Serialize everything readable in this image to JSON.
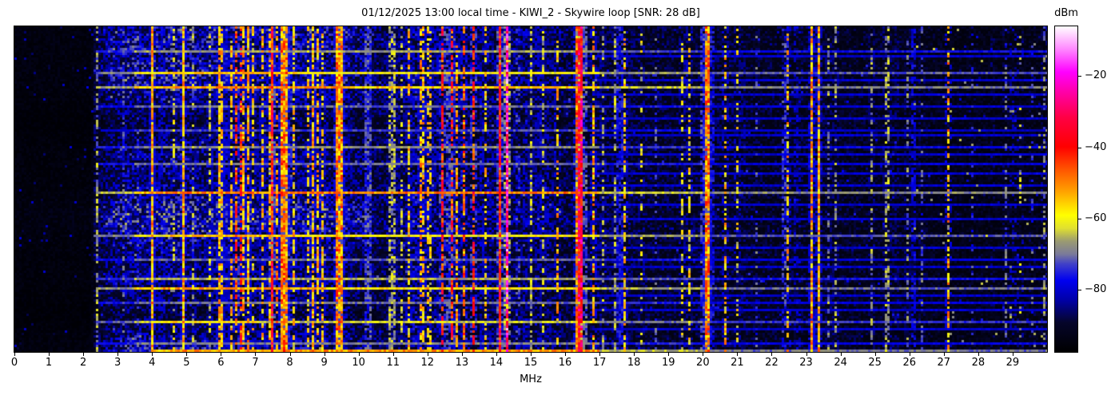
{
  "figure": {
    "background": "#ffffff",
    "text_color": "#000000"
  },
  "chart_data": {
    "type": "heatmap",
    "subtype": "radio-spectrogram-waterfall",
    "title": "01/12/2025 13:00 local time - KIWI_2 - Skywire loop [SNR: 28 dB]",
    "xlabel": "MHz",
    "x_range_mhz": [
      0,
      30
    ],
    "x_ticks": [
      0,
      1,
      2,
      3,
      4,
      5,
      6,
      7,
      8,
      9,
      10,
      11,
      12,
      13,
      14,
      15,
      16,
      17,
      18,
      19,
      20,
      21,
      22,
      23,
      24,
      25,
      26,
      27,
      28,
      29
    ],
    "y_axis": "time (no ticks shown)",
    "grid": false,
    "colorbar": {
      "label": "dBm",
      "ticks": [
        -20,
        -40,
        -60,
        -80
      ],
      "vmin": -97.5,
      "vmax": -6,
      "palette": [
        [
          0.0,
          "#000000"
        ],
        [
          0.09,
          "#05052a"
        ],
        [
          0.16,
          "#0000a8"
        ],
        [
          0.22,
          "#0000f0"
        ],
        [
          0.27,
          "#4040c8"
        ],
        [
          0.3,
          "#7a7a9a"
        ],
        [
          0.34,
          "#9a9a72"
        ],
        [
          0.38,
          "#e0e030"
        ],
        [
          0.42,
          "#ffff00"
        ],
        [
          0.5,
          "#ff9900"
        ],
        [
          0.56,
          "#ff5500"
        ],
        [
          0.63,
          "#ff0000"
        ],
        [
          0.72,
          "#ff0044"
        ],
        [
          0.8,
          "#ff00aa"
        ],
        [
          0.86,
          "#ff00ff"
        ],
        [
          0.93,
          "#ff88ff"
        ],
        [
          1.0,
          "#ffffff"
        ]
      ]
    },
    "noise_floor_profile": [
      [
        0,
        0.03
      ],
      [
        2.2,
        0.03
      ],
      [
        2.45,
        0.09
      ],
      [
        2.9,
        0.15
      ],
      [
        3.4,
        0.165
      ],
      [
        3.9,
        0.15
      ],
      [
        4.6,
        0.165
      ],
      [
        5.6,
        0.15
      ],
      [
        6.6,
        0.14
      ],
      [
        7.6,
        0.135
      ],
      [
        8.6,
        0.145
      ],
      [
        9.6,
        0.14
      ],
      [
        10.2,
        0.125
      ],
      [
        10.6,
        0.11
      ],
      [
        11.3,
        0.12
      ],
      [
        12.4,
        0.13
      ],
      [
        13.4,
        0.12
      ],
      [
        14.9,
        0.12
      ],
      [
        15.6,
        0.105
      ],
      [
        16.2,
        0.1
      ],
      [
        16.9,
        0.105
      ],
      [
        17.5,
        0.095
      ],
      [
        18.6,
        0.085
      ],
      [
        19.6,
        0.085
      ],
      [
        20.5,
        0.09
      ],
      [
        21.6,
        0.078
      ],
      [
        23.1,
        0.082
      ],
      [
        24.6,
        0.072
      ],
      [
        26.1,
        0.068
      ],
      [
        27.2,
        0.06
      ],
      [
        28.5,
        0.058
      ],
      [
        30,
        0.055
      ]
    ],
    "signal_bands": [
      [
        2.42,
        0.05,
        -68,
        0.55
      ],
      [
        3.17,
        0.04,
        -74,
        0.35
      ],
      [
        3.58,
        0.04,
        -75,
        0.3
      ],
      [
        4.01,
        0.06,
        -55,
        0.95
      ],
      [
        4.31,
        0.05,
        -57,
        0.6
      ],
      [
        4.62,
        0.04,
        -64,
        0.35
      ],
      [
        4.88,
        0.06,
        -55,
        0.9
      ],
      [
        5.17,
        0.04,
        -68,
        0.4
      ],
      [
        5.68,
        0.05,
        -64,
        0.5
      ],
      [
        5.78,
        0.05,
        -61,
        0.5
      ],
      [
        5.96,
        0.05,
        -56,
        0.7
      ],
      [
        6.03,
        0.05,
        -58,
        0.6
      ],
      [
        6.12,
        0.05,
        -56,
        0.7
      ],
      [
        6.19,
        0.05,
        -59,
        0.5
      ],
      [
        6.3,
        0.05,
        -57,
        0.6
      ],
      [
        6.44,
        0.05,
        -47,
        0.6
      ],
      [
        6.56,
        0.05,
        -45,
        0.5
      ],
      [
        6.65,
        0.05,
        -55,
        0.6
      ],
      [
        6.8,
        0.05,
        -56,
        0.7
      ],
      [
        6.93,
        0.05,
        -59,
        0.5
      ],
      [
        7.1,
        0.04,
        -64,
        0.4
      ],
      [
        7.2,
        0.05,
        -57,
        0.5
      ],
      [
        7.3,
        0.05,
        -58,
        0.5
      ],
      [
        7.4,
        0.05,
        -57,
        0.5
      ],
      [
        7.5,
        0.05,
        -41,
        0.85
      ],
      [
        7.6,
        0.05,
        -53,
        0.5
      ],
      [
        7.78,
        0.12,
        -51,
        0.92
      ],
      [
        7.9,
        0.08,
        -52,
        0.85
      ],
      [
        8.0,
        0.06,
        -48,
        0.7
      ],
      [
        8.12,
        0.05,
        -58,
        0.5
      ],
      [
        8.35,
        0.04,
        -63,
        0.4
      ],
      [
        8.55,
        0.05,
        -58,
        0.5
      ],
      [
        8.68,
        0.06,
        -55,
        0.7
      ],
      [
        8.78,
        0.06,
        -56,
        0.6
      ],
      [
        8.95,
        0.05,
        -58,
        0.5
      ],
      [
        9.05,
        0.05,
        -57,
        0.5
      ],
      [
        9.36,
        0.1,
        -51,
        0.95
      ],
      [
        9.47,
        0.08,
        -52,
        0.9
      ],
      [
        9.6,
        0.05,
        -58,
        0.4
      ],
      [
        9.75,
        0.04,
        -64,
        0.3
      ],
      [
        10.3,
        0.06,
        -39,
        1.0
      ],
      [
        10.95,
        0.2,
        -67,
        0.6
      ],
      [
        11.0,
        0.05,
        -57,
        0.3
      ],
      [
        11.25,
        0.04,
        -65,
        0.4
      ],
      [
        11.45,
        0.05,
        -58,
        0.5
      ],
      [
        11.55,
        0.05,
        -56,
        0.5
      ],
      [
        11.63,
        0.05,
        -49,
        0.4
      ],
      [
        11.8,
        0.06,
        -54,
        0.6
      ],
      [
        11.88,
        0.05,
        -56,
        0.5
      ],
      [
        12.0,
        0.05,
        -58,
        0.4
      ],
      [
        12.1,
        0.05,
        -60,
        0.4
      ],
      [
        12.25,
        0.05,
        -58,
        0.45
      ],
      [
        12.42,
        0.05,
        -42,
        0.7
      ],
      [
        12.6,
        0.06,
        -40,
        0.8
      ],
      [
        12.72,
        0.05,
        -43,
        0.6
      ],
      [
        12.85,
        0.05,
        -55,
        0.5
      ],
      [
        13.05,
        0.05,
        -50,
        0.6
      ],
      [
        13.35,
        0.05,
        -43,
        0.7
      ],
      [
        13.57,
        0.05,
        -57,
        0.5
      ],
      [
        13.7,
        0.05,
        -58,
        0.5
      ],
      [
        13.85,
        0.05,
        -60,
        0.4
      ],
      [
        14.08,
        0.05,
        -40,
        0.9
      ],
      [
        14.28,
        0.08,
        -26,
        0.95
      ],
      [
        14.62,
        0.05,
        -43,
        0.5
      ],
      [
        14.83,
        0.05,
        -56,
        0.5
      ],
      [
        15.0,
        0.12,
        -66,
        0.6
      ],
      [
        15.18,
        0.05,
        -57,
        0.5
      ],
      [
        15.35,
        0.06,
        -65,
        0.5
      ],
      [
        15.45,
        0.05,
        -59,
        0.5
      ],
      [
        15.6,
        0.04,
        -63,
        0.4
      ],
      [
        15.75,
        0.05,
        -56,
        0.5
      ],
      [
        16.0,
        0.04,
        -70,
        0.3
      ],
      [
        16.3,
        0.06,
        -50,
        0.8
      ],
      [
        16.44,
        0.18,
        -36,
        0.95
      ],
      [
        16.8,
        0.05,
        -55,
        0.6
      ],
      [
        17.1,
        0.04,
        -67,
        0.4
      ],
      [
        17.45,
        0.1,
        -67,
        0.5
      ],
      [
        17.6,
        0.04,
        -48,
        0.9
      ],
      [
        17.7,
        0.05,
        -57,
        0.5
      ],
      [
        17.9,
        0.04,
        -70,
        0.3
      ],
      [
        18.2,
        0.04,
        -63,
        0.25
      ],
      [
        18.6,
        0.04,
        -73,
        0.3
      ],
      [
        19.0,
        0.04,
        -75,
        0.25
      ],
      [
        19.4,
        0.05,
        -63,
        0.4
      ],
      [
        19.6,
        0.05,
        -59,
        0.45
      ],
      [
        19.98,
        0.04,
        -41,
        0.8
      ],
      [
        20.12,
        0.16,
        -51,
        0.9
      ],
      [
        20.25,
        0.05,
        -49,
        0.7
      ],
      [
        20.65,
        0.05,
        -57,
        0.5
      ],
      [
        21.0,
        0.04,
        -62,
        0.35
      ],
      [
        21.15,
        0.04,
        -67,
        0.35
      ],
      [
        21.55,
        0.04,
        -73,
        0.25
      ],
      [
        22.35,
        0.05,
        -42,
        0.55
      ],
      [
        22.45,
        0.04,
        -57,
        0.35
      ],
      [
        22.7,
        0.05,
        -58,
        0.4
      ],
      [
        23.15,
        0.05,
        -54,
        0.85
      ],
      [
        23.35,
        0.05,
        -55,
        0.8
      ],
      [
        23.65,
        0.04,
        -69,
        0.4
      ],
      [
        23.85,
        0.04,
        -69,
        0.35
      ],
      [
        24.35,
        0.04,
        -76,
        0.25
      ],
      [
        24.88,
        0.04,
        -69,
        0.4
      ],
      [
        25.35,
        0.1,
        -68,
        0.5
      ],
      [
        25.55,
        0.05,
        -69,
        0.4
      ],
      [
        25.9,
        0.06,
        -70,
        0.45
      ],
      [
        26.1,
        0.05,
        -53,
        0.75
      ],
      [
        26.35,
        0.04,
        -72,
        0.3
      ],
      [
        27.12,
        0.04,
        -55,
        0.5
      ],
      [
        27.8,
        0.04,
        -76,
        0.2
      ],
      [
        28.4,
        0.04,
        -73,
        0.3
      ],
      [
        28.8,
        0.04,
        -72,
        0.4
      ],
      [
        28.97,
        0.04,
        -60,
        0.35
      ],
      [
        29.2,
        0.04,
        -66,
        0.25
      ],
      [
        29.55,
        0.04,
        -74,
        0.3
      ],
      [
        29.9,
        0.05,
        -70,
        0.4
      ]
    ],
    "broadband_sweeps": [
      [
        10,
        -68,
        2.4,
        0,
        0
      ],
      [
        19,
        -61,
        2.4,
        4.3,
        8.2
      ],
      [
        25,
        -57,
        2.4,
        4.6,
        9.6
      ],
      [
        33,
        -72,
        2.4,
        0,
        0
      ],
      [
        43,
        -74,
        2.5,
        0,
        0
      ],
      [
        50,
        -69,
        2.4,
        0,
        0
      ],
      [
        57,
        -71,
        2.4,
        0,
        0
      ],
      [
        69,
        -56,
        2.4,
        4.0,
        17.0
      ],
      [
        87,
        -61,
        2.3,
        4.5,
        8.0
      ],
      [
        97,
        -72,
        2.4,
        0,
        0
      ],
      [
        105,
        -67,
        2.4,
        0,
        0
      ],
      [
        109,
        -59,
        2.4,
        4.3,
        9.0
      ],
      [
        115,
        -71,
        2.4,
        0,
        0
      ],
      [
        123,
        -64,
        2.4,
        4.0,
        7.0
      ],
      [
        132,
        -70,
        2.4,
        0,
        0
      ],
      [
        135,
        -58,
        4.0,
        4.5,
        17.0
      ]
    ],
    "faint_hf_rows": [
      12,
      22,
      28,
      38,
      45,
      53,
      61,
      66,
      74,
      80,
      92,
      100,
      112,
      118,
      126
    ],
    "render_seed": 1337
  }
}
